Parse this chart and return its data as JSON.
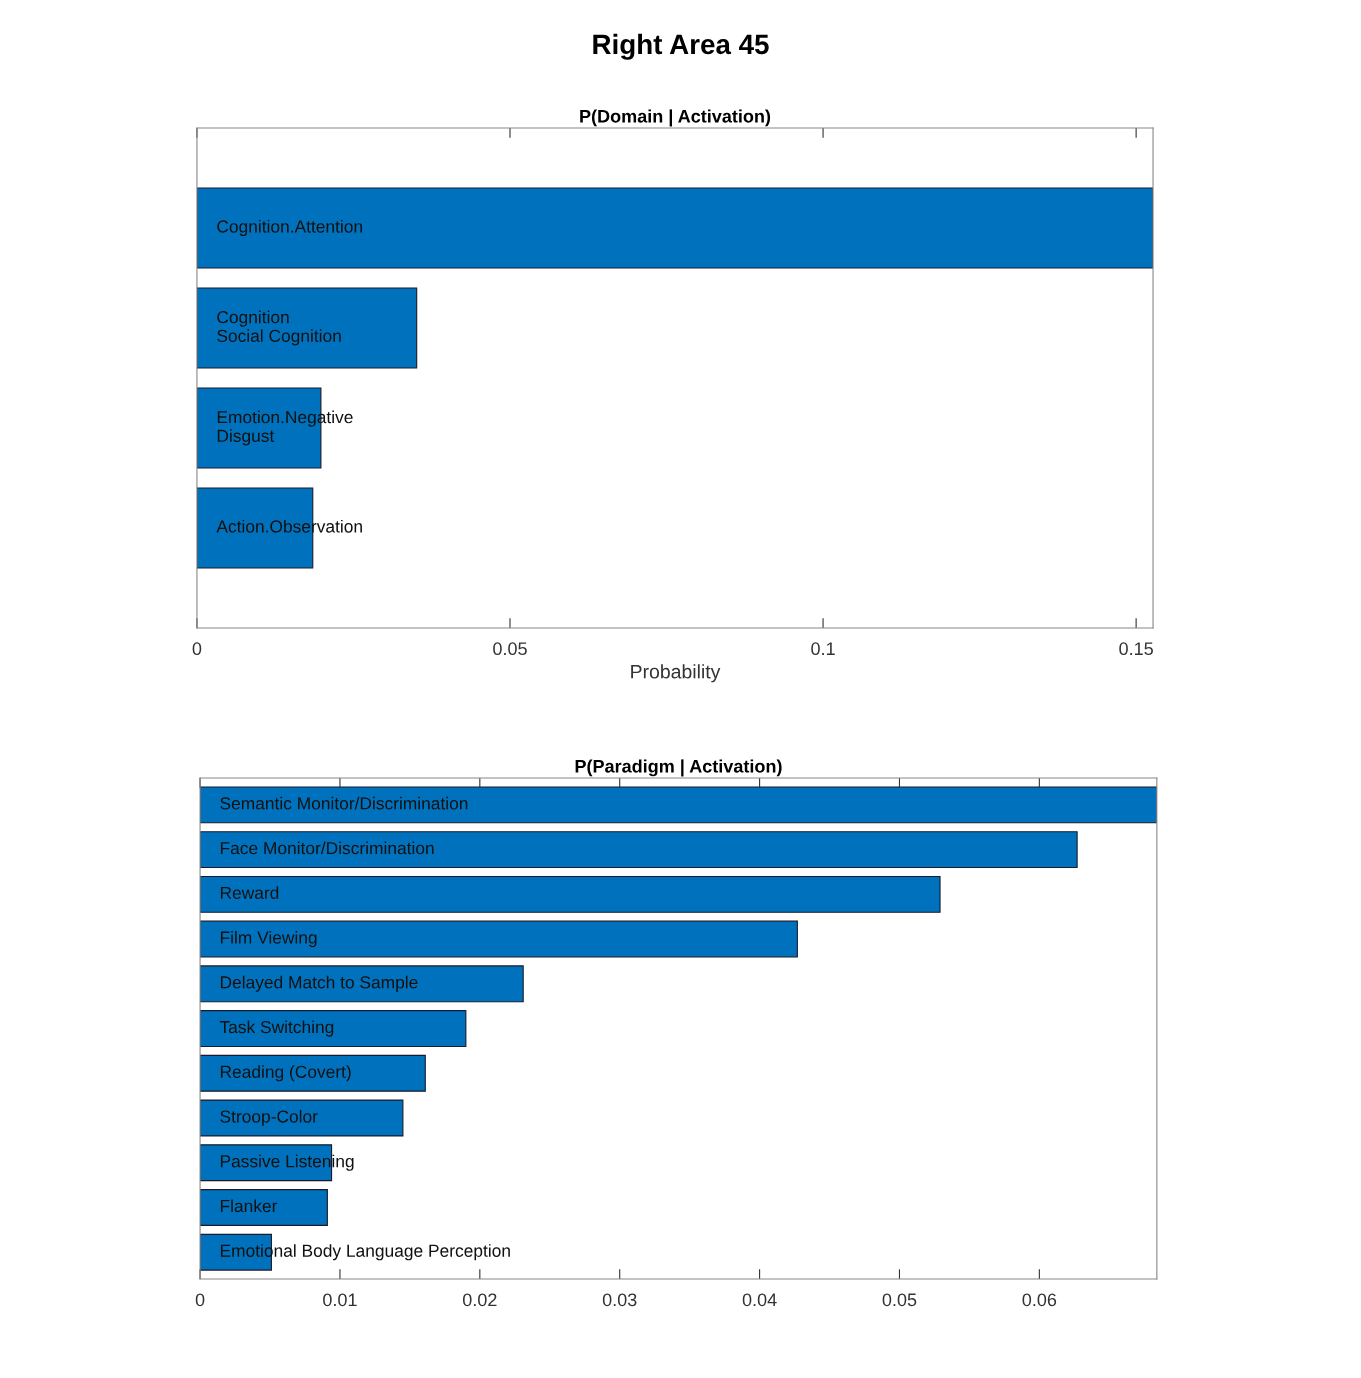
{
  "chart_data": [
    {
      "type": "bar",
      "orientation": "horizontal",
      "title": "Right Area 45",
      "subtitle": "P(Domain | Activation)",
      "xlabel": "Probability",
      "categories": [
        "Cognition.Attention",
        "Cognition\nSocial Cognition",
        "Emotion.Negative\nDisgust",
        "Action.Observation"
      ],
      "values": [
        0.1527,
        0.0351,
        0.0198,
        0.0185
      ],
      "color": "#0072bd",
      "xlim": [
        0,
        0.1527
      ],
      "xticks": [
        0,
        0.05,
        0.1,
        0.15
      ],
      "tick_labels": "x",
      "grid": false
    },
    {
      "type": "bar",
      "orientation": "horizontal",
      "title": "P(Paradigm | Activation)",
      "categories": [
        "Semantic Monitor/Discrimination",
        "Face Monitor/Discrimination",
        "Reward",
        "Film Viewing",
        "Delayed Match to Sample",
        "Task Switching",
        "Reading (Covert)",
        "Stroop-Color",
        "Passive Listening",
        "Flanker",
        "Emotional Body Language Perception"
      ],
      "values": [
        0.0684,
        0.0627,
        0.0529,
        0.0427,
        0.0231,
        0.019,
        0.0161,
        0.0145,
        0.0094,
        0.0091,
        0.0051
      ],
      "color": "#0072bd",
      "xlim": [
        0,
        0.0684
      ],
      "xticks": [
        0,
        0.01,
        0.02,
        0.03,
        0.04,
        0.05,
        0.06
      ],
      "tick_labels": "x",
      "grid": false
    }
  ]
}
